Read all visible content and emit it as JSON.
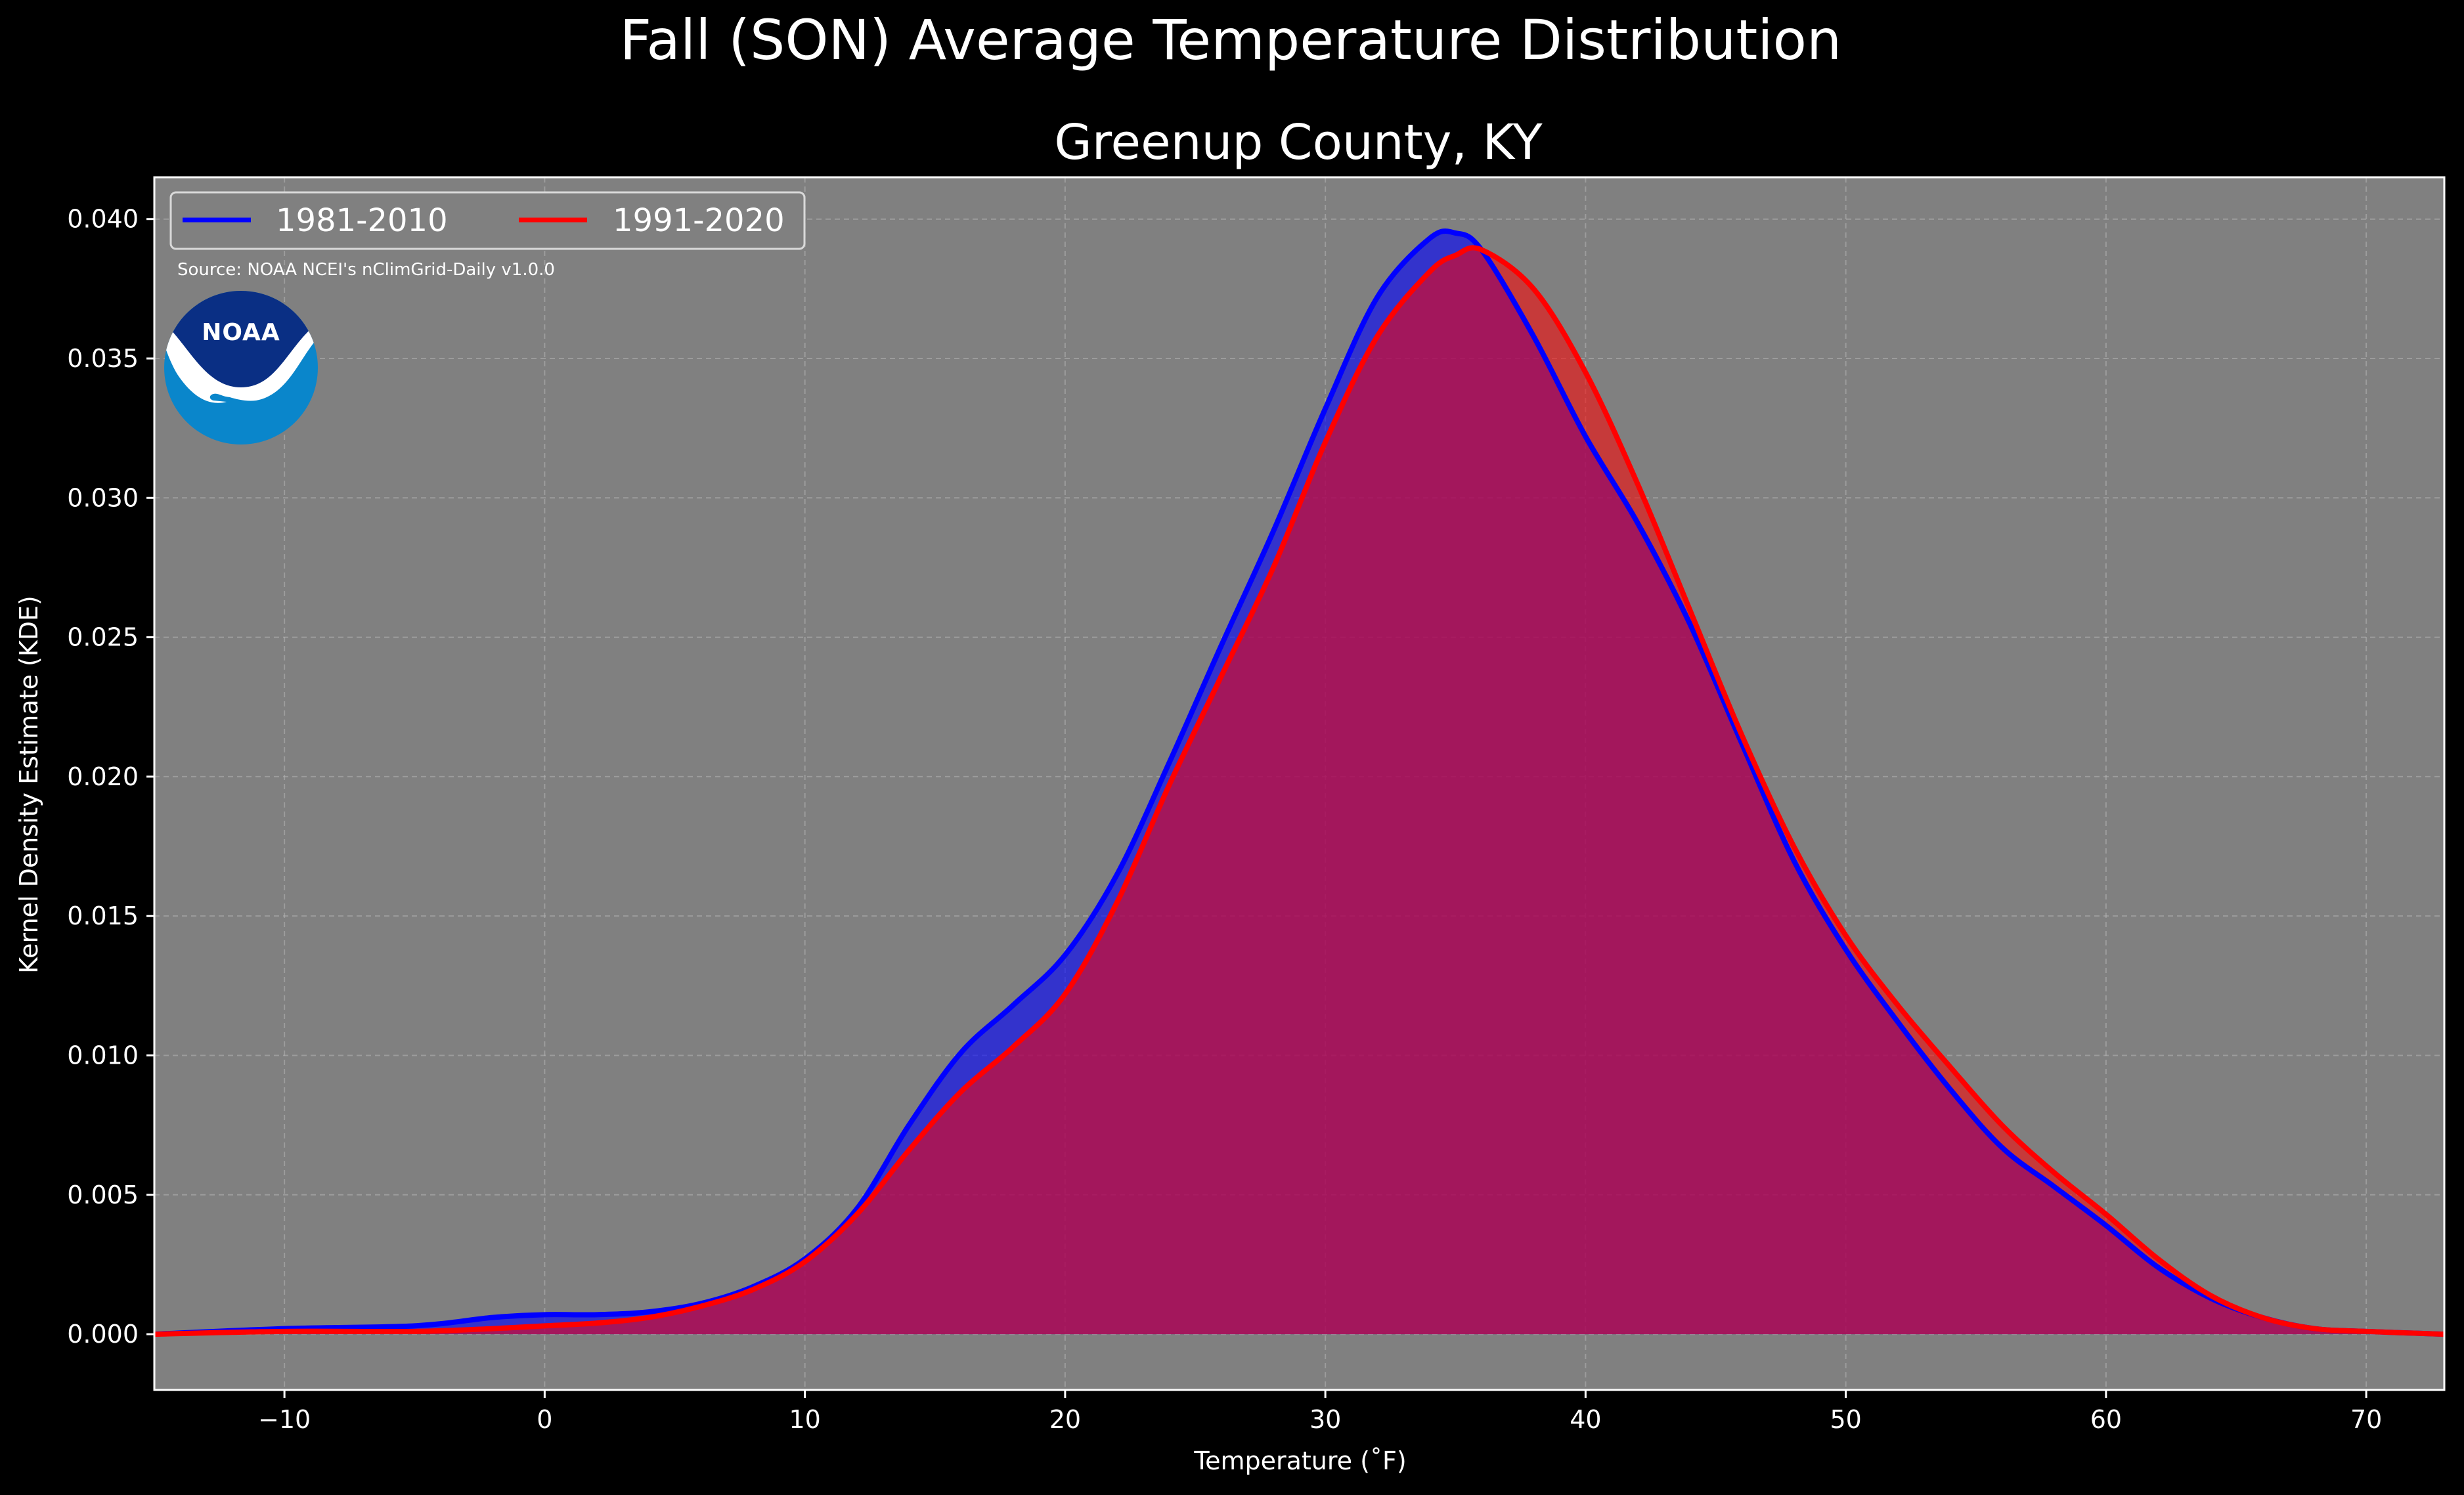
{
  "chart_data": {
    "type": "area",
    "title": "Fall (SON) Average Temperature Distribution",
    "subtitle": "Greenup County, KY",
    "xlabel": "Temperature (˚F)",
    "ylabel": "Kernel Density Estimate (KDE)",
    "xlim": [
      -15,
      73
    ],
    "ylim": [
      -0.002,
      0.0415
    ],
    "xticks": [
      -10,
      0,
      10,
      20,
      30,
      40,
      50,
      60,
      70
    ],
    "xtick_labels": [
      "−10",
      "0",
      "10",
      "20",
      "30",
      "40",
      "50",
      "60",
      "70"
    ],
    "yticks": [
      0.0,
      0.005,
      0.01,
      0.015,
      0.02,
      0.025,
      0.03,
      0.035,
      0.04
    ],
    "ytick_labels": [
      "0.000",
      "0.005",
      "0.010",
      "0.015",
      "0.020",
      "0.025",
      "0.030",
      "0.035",
      "0.040"
    ],
    "grid": true,
    "legend_position": "top-left",
    "source_note": "Source: NOAA NCEI's nClimGrid-Daily v1.0.0",
    "logo_text": "NOAA",
    "colors": {
      "figure_background": "#000000",
      "axes_background": "#808080",
      "series_1": "#0000ff",
      "series_2": "#ff0000",
      "overlap_fill": "#a01e5a",
      "logo_dark": "#0a2f84",
      "logo_light": "#0a86cb"
    },
    "series": [
      {
        "name": "1981-2010",
        "color": "#0000ff",
        "x": [
          -15,
          -10,
          -5,
          -2,
          0,
          2,
          4,
          6,
          8,
          10,
          12,
          14,
          16,
          18,
          20,
          22,
          24,
          26,
          28,
          30,
          32,
          34,
          35,
          36,
          38,
          40,
          42,
          44,
          46,
          48,
          50,
          52,
          54,
          56,
          58,
          60,
          62,
          64,
          66,
          68,
          70,
          73
        ],
        "values": [
          0.0,
          0.0002,
          0.0003,
          0.0006,
          0.0007,
          0.0007,
          0.0008,
          0.0011,
          0.0017,
          0.0027,
          0.0045,
          0.0075,
          0.0101,
          0.0118,
          0.0136,
          0.0165,
          0.0205,
          0.0247,
          0.0288,
          0.0332,
          0.0372,
          0.0393,
          0.0395,
          0.0389,
          0.0358,
          0.0322,
          0.0291,
          0.0255,
          0.0212,
          0.017,
          0.0138,
          0.0112,
          0.0088,
          0.0067,
          0.0053,
          0.0039,
          0.0024,
          0.0013,
          0.0006,
          0.0002,
          0.0001,
          0.0
        ]
      },
      {
        "name": "1991-2020",
        "color": "#ff0000",
        "x": [
          -15,
          -10,
          -5,
          -2,
          0,
          2,
          4,
          6,
          8,
          10,
          12,
          14,
          16,
          18,
          20,
          22,
          24,
          26,
          28,
          30,
          32,
          34,
          35,
          36,
          38,
          40,
          42,
          44,
          46,
          48,
          50,
          52,
          54,
          56,
          58,
          60,
          62,
          64,
          66,
          68,
          70,
          73
        ],
        "values": [
          0.0,
          0.0001,
          0.0001,
          0.0002,
          0.0003,
          0.0004,
          0.0006,
          0.001,
          0.0016,
          0.0026,
          0.0043,
          0.0066,
          0.0087,
          0.0103,
          0.0122,
          0.0155,
          0.0197,
          0.0236,
          0.0275,
          0.032,
          0.0358,
          0.0381,
          0.0387,
          0.0389,
          0.0375,
          0.0345,
          0.0305,
          0.026,
          0.0215,
          0.0175,
          0.0143,
          0.0118,
          0.0096,
          0.0075,
          0.0058,
          0.0043,
          0.0027,
          0.0014,
          0.0006,
          0.0002,
          0.0001,
          0.0
        ]
      }
    ]
  }
}
